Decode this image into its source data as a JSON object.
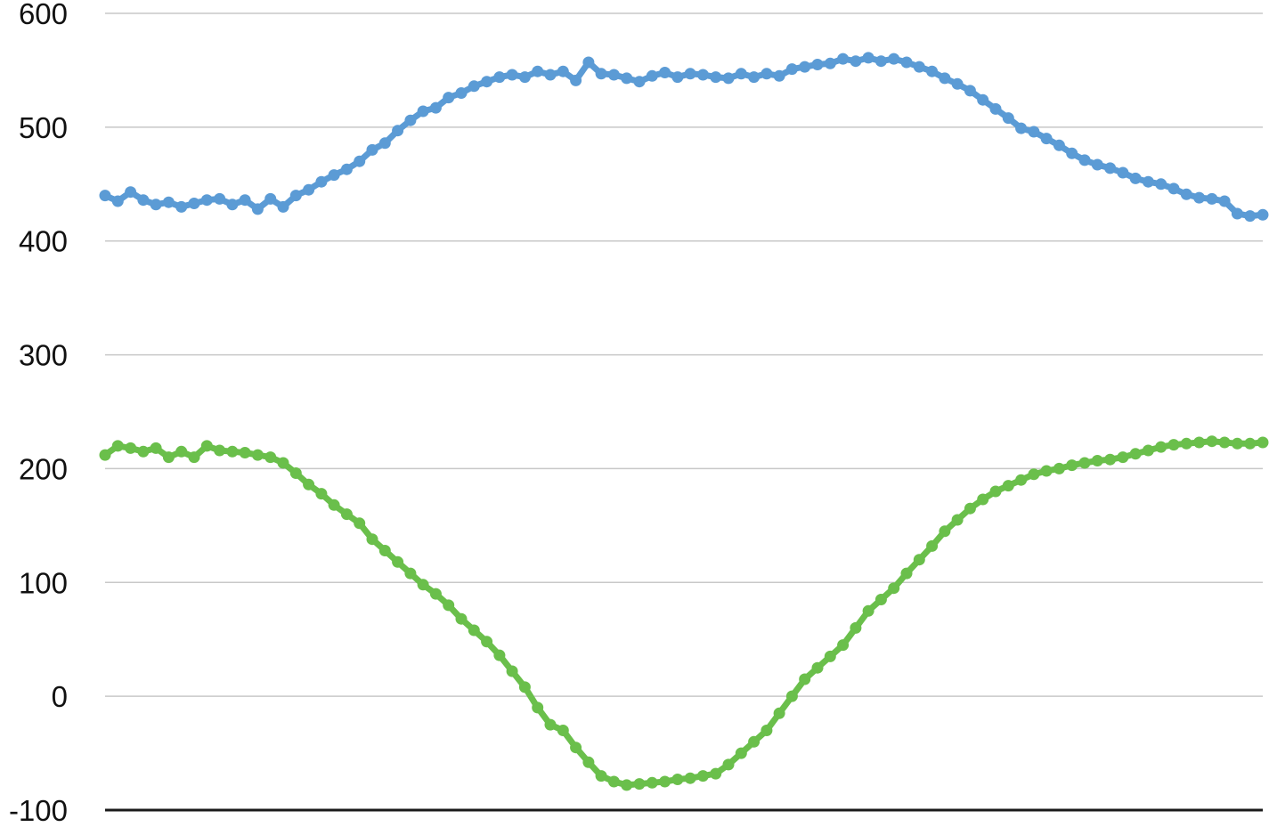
{
  "chart_data": {
    "type": "line",
    "title": "",
    "xlabel": "",
    "ylabel": "",
    "ylim": [
      -100,
      600
    ],
    "yticks": [
      -100,
      0,
      100,
      200,
      300,
      400,
      500,
      600
    ],
    "grid": true,
    "x_axis_labels": false,
    "legend": "none",
    "series": [
      {
        "color": "#5b9bd5",
        "marker": "circle",
        "values": [
          440,
          435,
          443,
          436,
          432,
          434,
          430,
          433,
          436,
          437,
          432,
          436,
          428,
          437,
          430,
          440,
          445,
          452,
          458,
          463,
          470,
          480,
          486,
          497,
          506,
          514,
          517,
          526,
          530,
          536,
          540,
          544,
          546,
          544,
          549,
          546,
          549,
          541,
          557,
          547,
          546,
          543,
          540,
          545,
          548,
          544,
          547,
          546,
          544,
          543,
          547,
          544,
          547,
          545,
          551,
          553,
          555,
          556,
          560,
          558,
          561,
          558,
          560,
          557,
          553,
          549,
          543,
          538,
          532,
          524,
          516,
          508,
          499,
          496,
          490,
          484,
          477,
          471,
          467,
          464,
          460,
          455,
          452,
          450,
          446,
          441,
          438,
          437,
          435,
          424,
          422,
          423
        ]
      },
      {
        "color": "#6abf4b",
        "marker": "circle",
        "values": [
          212,
          220,
          218,
          215,
          218,
          210,
          215,
          210,
          220,
          216,
          215,
          214,
          212,
          210,
          205,
          196,
          186,
          178,
          168,
          160,
          152,
          138,
          128,
          118,
          108,
          98,
          90,
          80,
          68,
          58,
          48,
          36,
          22,
          8,
          -10,
          -25,
          -30,
          -45,
          -58,
          -70,
          -75,
          -78,
          -77,
          -76,
          -75,
          -73,
          -72,
          -70,
          -68,
          -60,
          -50,
          -40,
          -30,
          -15,
          0,
          15,
          25,
          35,
          45,
          60,
          75,
          85,
          95,
          108,
          120,
          132,
          145,
          155,
          165,
          173,
          180,
          185,
          190,
          195,
          198,
          200,
          203,
          205,
          207,
          208,
          210,
          213,
          216,
          219,
          221,
          222,
          223,
          224,
          223,
          222,
          222,
          223
        ]
      }
    ]
  }
}
